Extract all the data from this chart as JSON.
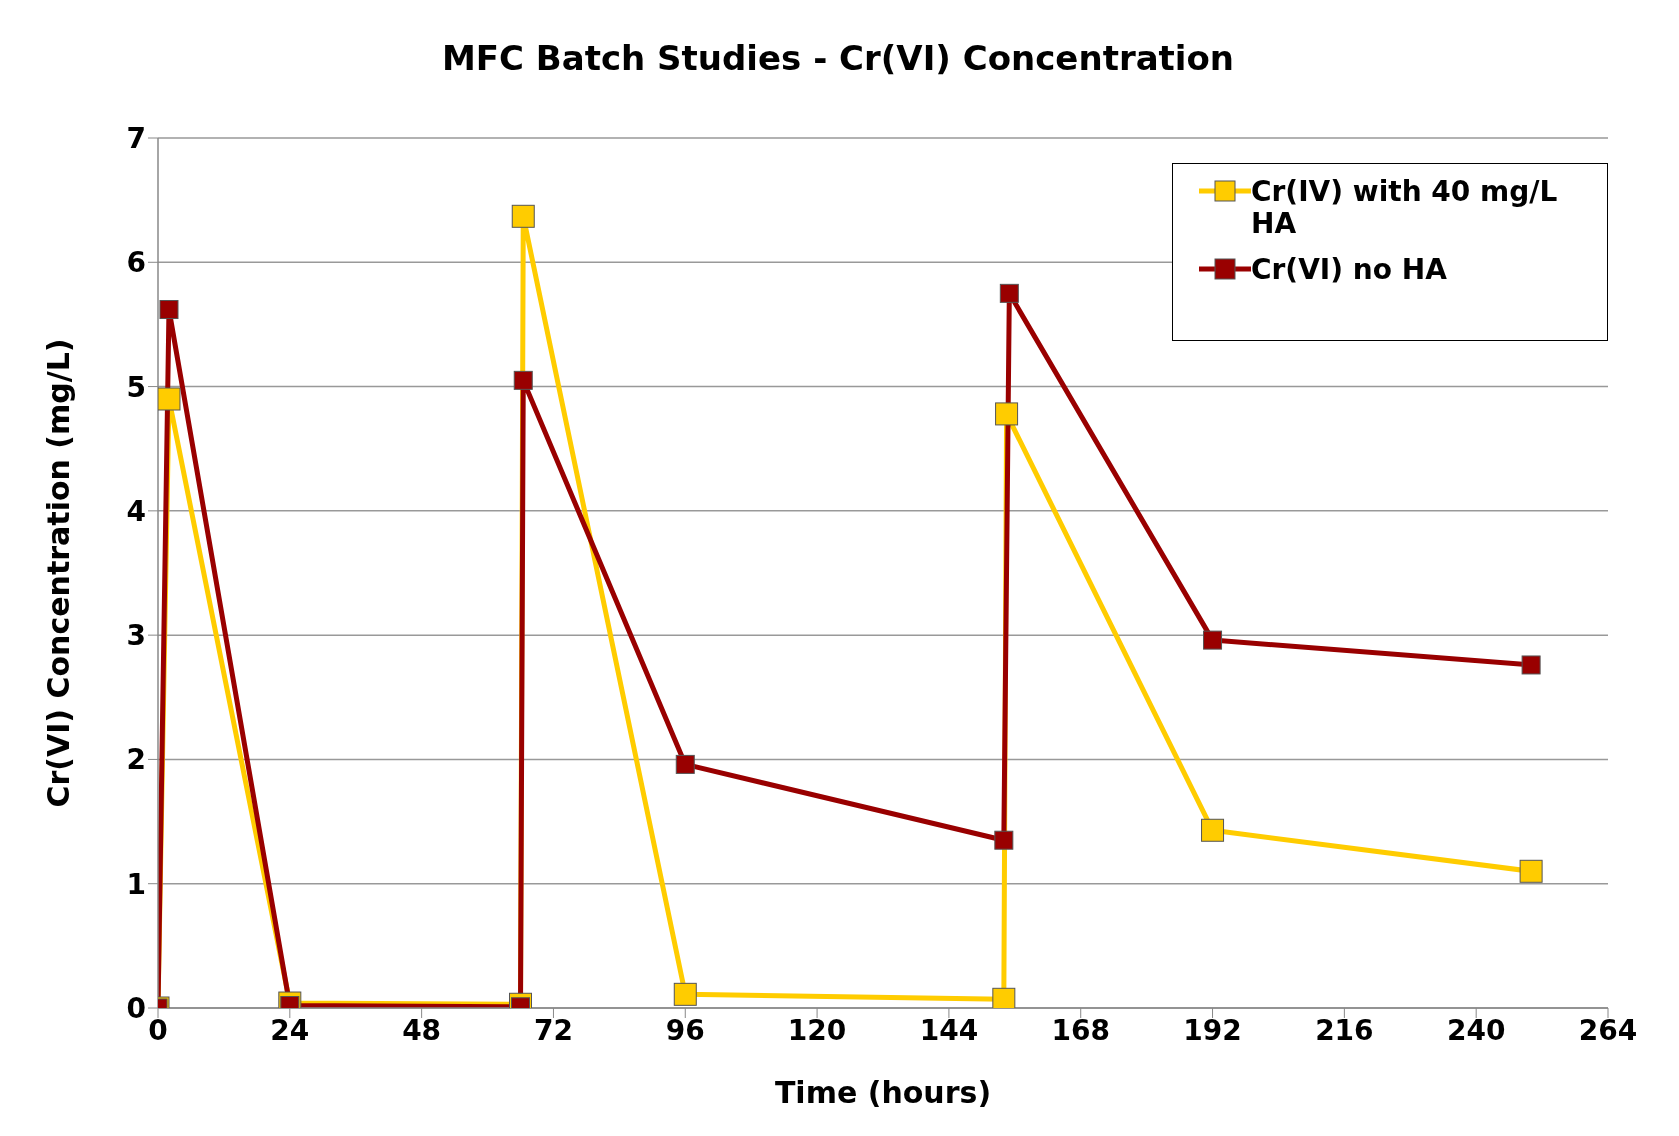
{
  "chart_data": {
    "type": "line",
    "title": "MFC Batch Studies - Cr(VI) Concentration",
    "xlabel": "Time (hours)",
    "ylabel": "Cr(VI) Concentration (mg/L)",
    "xlim": [
      0,
      264
    ],
    "xticks": [
      0,
      24,
      48,
      72,
      96,
      120,
      144,
      168,
      192,
      216,
      240,
      264
    ],
    "ylim": [
      0,
      7
    ],
    "yticks": [
      0,
      1,
      2,
      3,
      4,
      5,
      6,
      7
    ],
    "grid": "y",
    "legend": "top right",
    "marker": "square",
    "line_style": "solid",
    "series": [
      {
        "name": "Cr(IV) with 40 mg/L HA",
        "color": "#ffcc00",
        "x": [
          0,
          2,
          24,
          66,
          66.5,
          96,
          154,
          154.5,
          192,
          250
        ],
        "values": [
          0,
          4.9,
          0.04,
          0.03,
          6.37,
          0.11,
          0.07,
          4.78,
          1.43,
          1.1
        ]
      },
      {
        "name": "Cr(VI) no HA",
        "color": "#990000",
        "x": [
          0,
          2,
          24,
          66,
          66.5,
          96,
          154,
          155,
          192,
          250
        ],
        "values": [
          0,
          5.62,
          0.02,
          0.01,
          5.05,
          1.96,
          1.35,
          5.75,
          2.96,
          2.76
        ]
      }
    ]
  }
}
